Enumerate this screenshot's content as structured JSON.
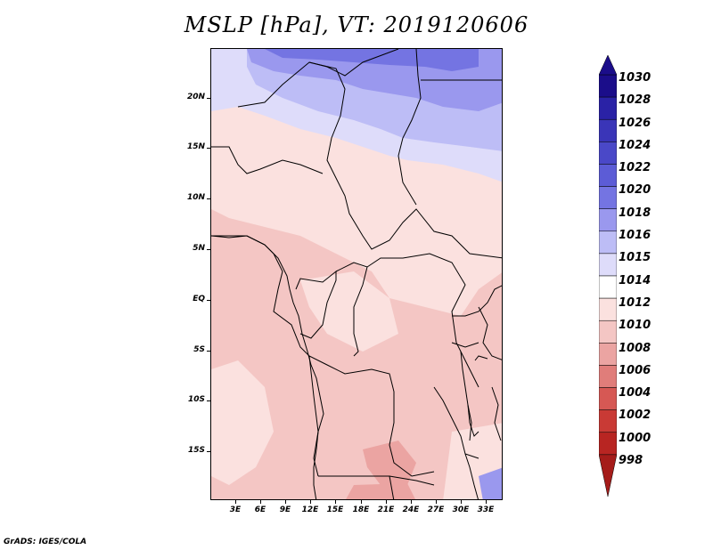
{
  "title": "MSLP [hPa], VT: 2019120606",
  "footer": "GrADS: IGES/COLA",
  "y_axis_labels": [
    "20N",
    "15N",
    "10N",
    "5N",
    "EQ",
    "5S",
    "10S",
    "15S"
  ],
  "x_axis_labels": [
    "3E",
    "6E",
    "9E",
    "12E",
    "15E",
    "18E",
    "21E",
    "24E",
    "27E",
    "30E",
    "33E"
  ],
  "colorbar": {
    "levels": [
      "1030",
      "1028",
      "1026",
      "1024",
      "1022",
      "1020",
      "1018",
      "1016",
      "1015",
      "1014",
      "1012",
      "1010",
      "1008",
      "1006",
      "1004",
      "1002",
      "1000",
      "998"
    ],
    "colors": [
      "#1b0d8a",
      "#2a22a6",
      "#3a35b8",
      "#4a48c8",
      "#5c5cd6",
      "#7474e2",
      "#9a98ee",
      "#bdbdf6",
      "#dedcfa",
      "#ffffff",
      "#fbe1df",
      "#f4c6c4",
      "#eba4a2",
      "#e07d7a",
      "#d65854",
      "#c93a35",
      "#b82522",
      "#a51c1a"
    ]
  },
  "map_colors": {
    "base": "#f4c6c4",
    "light_pink": "#fbe1df",
    "medium_pink": "#eba4a2",
    "lavender": "#dedcfa",
    "light_blue": "#bdbdf6",
    "blue": "#9a98ee",
    "dark_blue": "#7474e2"
  }
}
